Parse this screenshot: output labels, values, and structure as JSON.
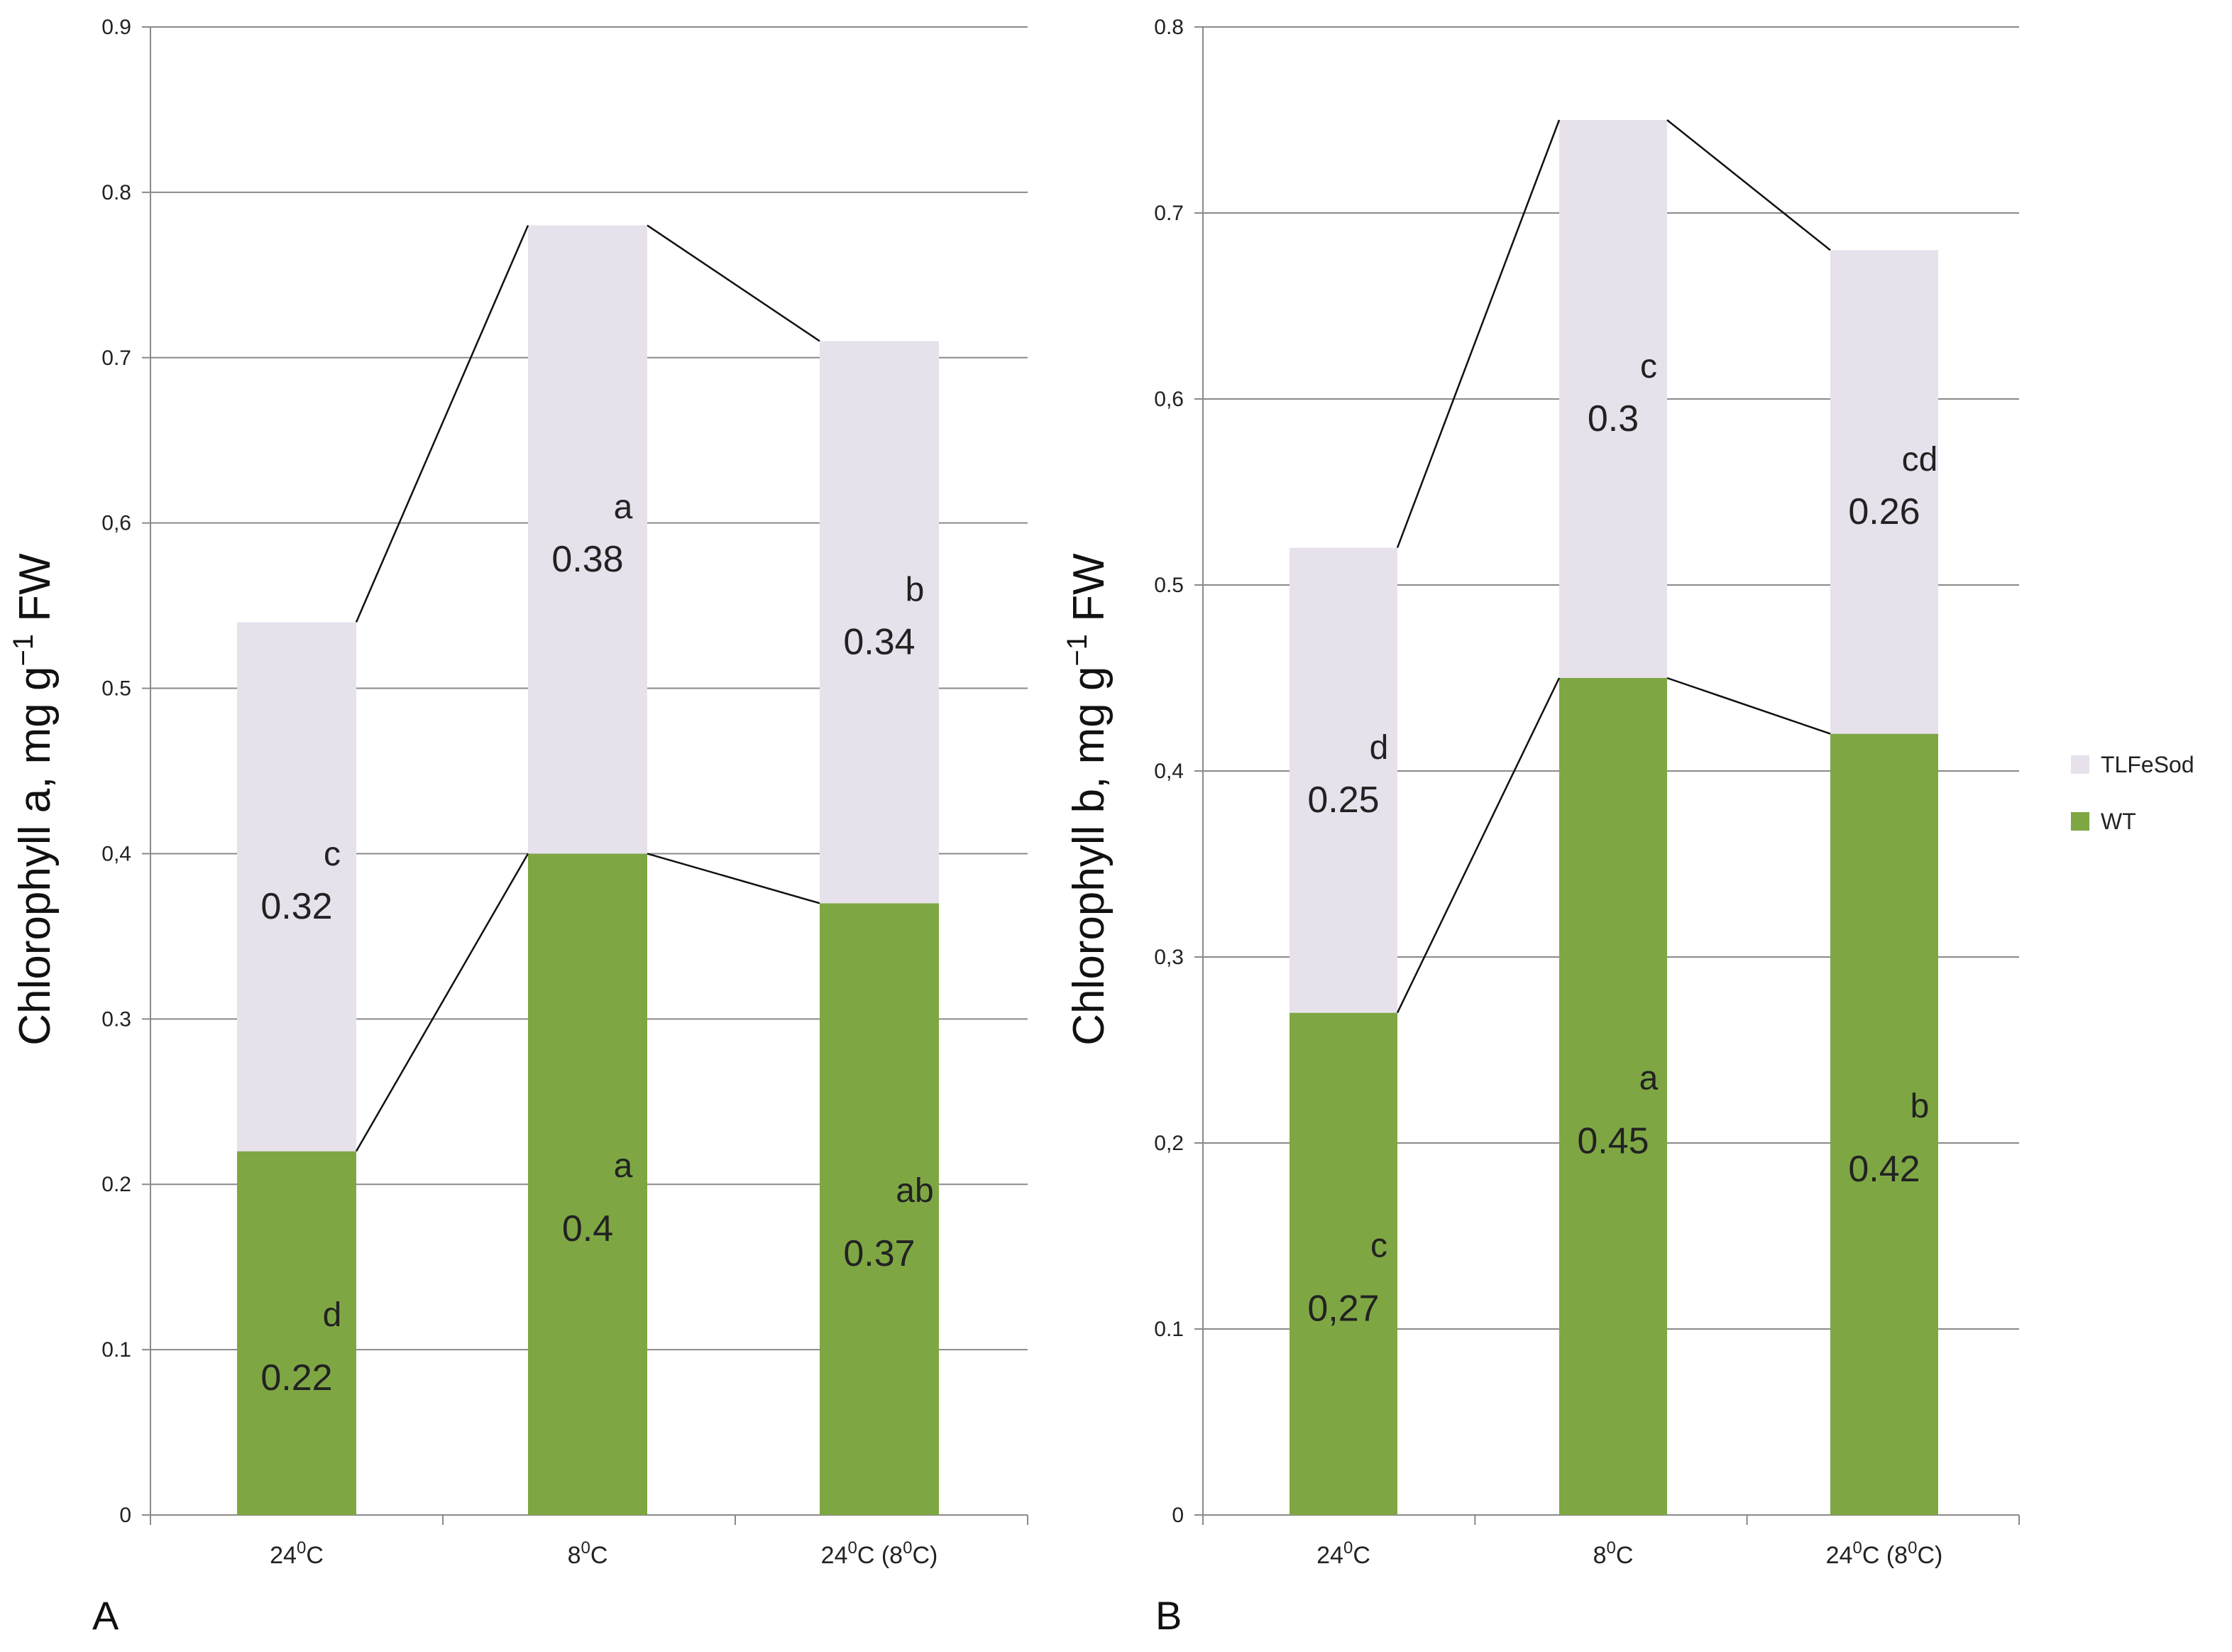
{
  "colors": {
    "wt": "#7ea744",
    "tlfesod": "#e7e1ec"
  },
  "legend": [
    {
      "name": "TLFeSod",
      "color": "#e7e1ec"
    },
    {
      "name": "WT",
      "color": "#7ea744"
    }
  ],
  "chart_data": [
    {
      "type": "bar",
      "stacked": true,
      "panel_label": "A",
      "ylabel_main": "Chlorophyll a, mg g",
      "ylabel_sup": "−1",
      "ylabel_tail": " FW",
      "ylim": [
        0,
        0.9
      ],
      "ytick_values": [
        0,
        0.1,
        0.2,
        0.3,
        0.4,
        0.5,
        0.6,
        0.7,
        0.8,
        0.9
      ],
      "ytick_labels": [
        "0",
        "0.1",
        "0.2",
        "0.3",
        "0,4",
        "0.5",
        "0,6",
        "0.7",
        "0.8",
        "0.9"
      ],
      "categories": [
        {
          "main": "24",
          "sup": "0",
          "unit": "C",
          "extra": ""
        },
        {
          "main": "8",
          "sup": "0",
          "unit": "C",
          "extra": ""
        },
        {
          "main": "24",
          "sup": "0",
          "unit": "C",
          "extra": " (8",
          "extra_sup": "0",
          "extra_unit": "C)"
        }
      ],
      "series": [
        {
          "name": "WT",
          "values": [
            0.22,
            0.4,
            0.37
          ],
          "value_labels": [
            "0.22",
            "0.4",
            "0.37"
          ],
          "letters": [
            "d",
            "a",
            "ab"
          ]
        },
        {
          "name": "TLFeSod",
          "values": [
            0.32,
            0.38,
            0.34
          ],
          "value_labels": [
            "0.32",
            "0.38",
            "0.34"
          ],
          "letters": [
            "c",
            "a",
            "b"
          ]
        }
      ]
    },
    {
      "type": "bar",
      "stacked": true,
      "panel_label": "B",
      "ylabel_main": "Chlorophyll b, mg g",
      "ylabel_sup": "−1",
      "ylabel_tail": " FW",
      "ylim": [
        0,
        0.8
      ],
      "ytick_values": [
        0,
        0.1,
        0.2,
        0.3,
        0.4,
        0.5,
        0.6,
        0.7,
        0.8
      ],
      "ytick_labels": [
        "0",
        "0.1",
        "0,2",
        "0,3",
        "0,4",
        "0.5",
        "0,6",
        "0.7",
        "0.8"
      ],
      "categories": [
        {
          "main": "24",
          "sup": "0",
          "unit": "C",
          "extra": ""
        },
        {
          "main": "8",
          "sup": "0",
          "unit": "C",
          "extra": ""
        },
        {
          "main": "24",
          "sup": "0",
          "unit": "C",
          "extra": " (8",
          "extra_sup": "0",
          "extra_unit": "C)"
        }
      ],
      "series": [
        {
          "name": "WT",
          "values": [
            0.27,
            0.45,
            0.42
          ],
          "value_labels": [
            "0,27",
            "0.45",
            "0.42"
          ],
          "letters": [
            "c",
            "a",
            "b"
          ]
        },
        {
          "name": "TLFeSod",
          "values": [
            0.25,
            0.3,
            0.26
          ],
          "value_labels": [
            "0.25",
            "0.3",
            "0.26"
          ],
          "letters": [
            "d",
            "c",
            "cd"
          ]
        }
      ]
    }
  ]
}
